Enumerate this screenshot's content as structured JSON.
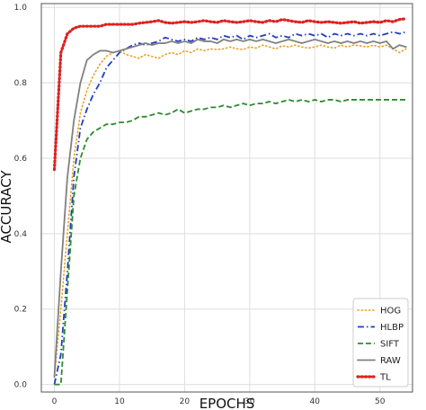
{
  "chart_data": {
    "type": "line",
    "title": "",
    "xlabel": "EPOCHS",
    "ylabel": "ACCURACY",
    "xlim": [
      -2,
      55
    ],
    "ylim": [
      -0.02,
      1.01
    ],
    "xticks": [
      0,
      10,
      20,
      30,
      40,
      50
    ],
    "yticks": [
      0.0,
      0.2,
      0.4,
      0.6,
      0.8,
      1.0
    ],
    "xtick_labels": [
      "0",
      "10",
      "20",
      "30",
      "40",
      "50"
    ],
    "ytick_labels": [
      "0.0",
      "0.2",
      "0.4",
      "0.6",
      "0.8",
      "1.0"
    ],
    "grid": true,
    "legend_position": "bottom-right",
    "x": [
      0,
      1,
      2,
      3,
      4,
      5,
      6,
      7,
      8,
      9,
      10,
      11,
      12,
      13,
      14,
      15,
      16,
      17,
      18,
      19,
      20,
      21,
      22,
      23,
      24,
      25,
      26,
      27,
      28,
      29,
      30,
      31,
      32,
      33,
      34,
      35,
      36,
      37,
      38,
      39,
      40,
      41,
      42,
      43,
      44,
      45,
      46,
      47,
      48,
      49,
      50,
      51,
      52,
      53,
      54
    ],
    "series": [
      {
        "name": "HOG",
        "color": "#e8a020",
        "dash": "dotted",
        "values": [
          0.02,
          0.2,
          0.4,
          0.6,
          0.72,
          0.78,
          0.82,
          0.85,
          0.87,
          0.88,
          0.885,
          0.875,
          0.87,
          0.865,
          0.875,
          0.87,
          0.865,
          0.875,
          0.88,
          0.875,
          0.885,
          0.88,
          0.89,
          0.885,
          0.89,
          0.888,
          0.89,
          0.895,
          0.89,
          0.888,
          0.895,
          0.892,
          0.9,
          0.895,
          0.89,
          0.898,
          0.895,
          0.9,
          0.895,
          0.892,
          0.895,
          0.9,
          0.895,
          0.892,
          0.9,
          0.895,
          0.9,
          0.898,
          0.895,
          0.9,
          0.895,
          0.9,
          0.89,
          0.88,
          0.89
        ]
      },
      {
        "name": "HLBP",
        "color": "#1f3fbf",
        "dash": "dashdot",
        "values": [
          0.0,
          0.08,
          0.3,
          0.55,
          0.68,
          0.73,
          0.77,
          0.8,
          0.84,
          0.86,
          0.88,
          0.89,
          0.9,
          0.905,
          0.9,
          0.905,
          0.91,
          0.92,
          0.915,
          0.91,
          0.915,
          0.91,
          0.92,
          0.915,
          0.92,
          0.915,
          0.925,
          0.92,
          0.925,
          0.915,
          0.925,
          0.92,
          0.925,
          0.93,
          0.92,
          0.925,
          0.92,
          0.93,
          0.925,
          0.93,
          0.925,
          0.93,
          0.92,
          0.93,
          0.925,
          0.93,
          0.925,
          0.93,
          0.925,
          0.93,
          0.925,
          0.93,
          0.935,
          0.93,
          0.935
        ]
      },
      {
        "name": "SIFT",
        "color": "#2e8b2e",
        "dash": "dashed",
        "values": [
          0.0,
          0.0,
          0.25,
          0.5,
          0.6,
          0.65,
          0.67,
          0.68,
          0.69,
          0.69,
          0.695,
          0.695,
          0.7,
          0.71,
          0.71,
          0.715,
          0.72,
          0.715,
          0.72,
          0.73,
          0.72,
          0.725,
          0.73,
          0.73,
          0.735,
          0.735,
          0.74,
          0.735,
          0.74,
          0.745,
          0.74,
          0.745,
          0.745,
          0.75,
          0.745,
          0.75,
          0.755,
          0.75,
          0.755,
          0.75,
          0.755,
          0.75,
          0.755,
          0.755,
          0.75,
          0.755,
          0.755,
          0.755,
          0.755,
          0.755,
          0.755,
          0.755,
          0.755,
          0.755,
          0.755
        ]
      },
      {
        "name": "RAW",
        "color": "#808080",
        "dash": "solid",
        "values": [
          0.02,
          0.3,
          0.55,
          0.7,
          0.8,
          0.86,
          0.875,
          0.885,
          0.885,
          0.88,
          0.885,
          0.89,
          0.895,
          0.9,
          0.905,
          0.9,
          0.905,
          0.905,
          0.91,
          0.905,
          0.91,
          0.905,
          0.915,
          0.91,
          0.91,
          0.905,
          0.915,
          0.91,
          0.915,
          0.91,
          0.915,
          0.91,
          0.915,
          0.91,
          0.905,
          0.91,
          0.915,
          0.91,
          0.905,
          0.91,
          0.915,
          0.91,
          0.905,
          0.91,
          0.905,
          0.91,
          0.905,
          0.91,
          0.905,
          0.91,
          0.905,
          0.91,
          0.89,
          0.9,
          0.895
        ]
      },
      {
        "name": "TL",
        "color": "#e02020",
        "dash": "dotted",
        "values": [
          0.57,
          0.88,
          0.93,
          0.945,
          0.95,
          0.95,
          0.95,
          0.95,
          0.955,
          0.955,
          0.955,
          0.955,
          0.955,
          0.958,
          0.96,
          0.962,
          0.965,
          0.96,
          0.958,
          0.96,
          0.962,
          0.96,
          0.962,
          0.965,
          0.962,
          0.96,
          0.965,
          0.962,
          0.96,
          0.962,
          0.965,
          0.962,
          0.96,
          0.965,
          0.962,
          0.968,
          0.965,
          0.962,
          0.96,
          0.965,
          0.962,
          0.96,
          0.962,
          0.96,
          0.958,
          0.96,
          0.962,
          0.958,
          0.96,
          0.962,
          0.96,
          0.965,
          0.962,
          0.968,
          0.97
        ]
      }
    ]
  }
}
